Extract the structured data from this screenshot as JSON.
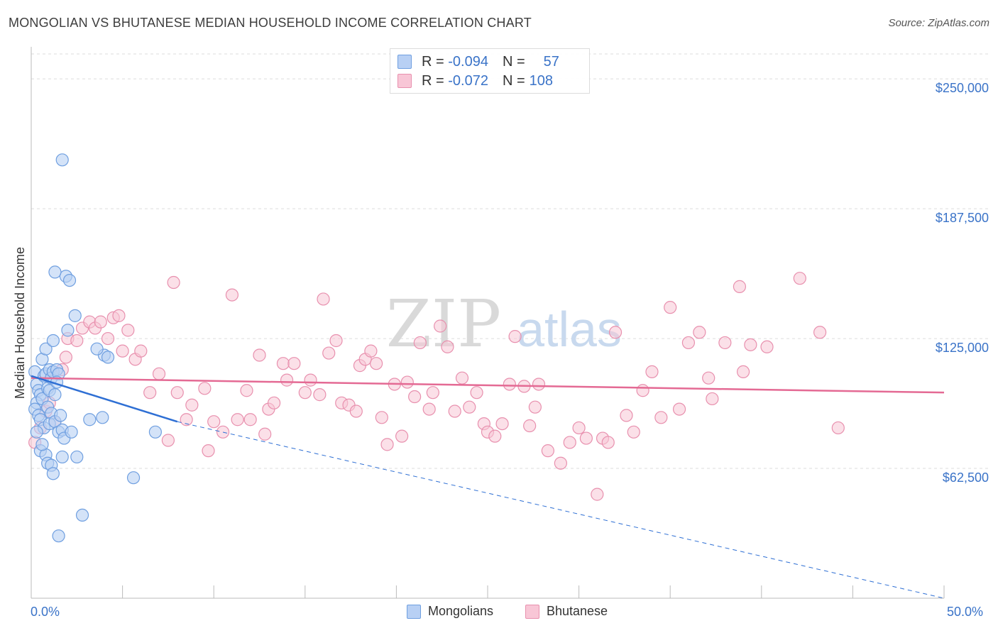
{
  "header": {
    "title": "MONGOLIAN VS BHUTANESE MEDIAN HOUSEHOLD INCOME CORRELATION CHART",
    "source": "Source: ZipAtlas.com"
  },
  "watermark": {
    "zip": "ZIP",
    "atlas": "atlas"
  },
  "colors": {
    "mongolian_fill": "#b8d0f4",
    "mongolian_stroke": "#6f9fe0",
    "mongolian_line": "#2e6fd4",
    "bhutanese_fill": "#f8c6d6",
    "bhutanese_stroke": "#e890ae",
    "bhutanese_line": "#e46a94",
    "axis_label": "#3a73c8",
    "grid": "#dddddd"
  },
  "correlation_box": {
    "rows": [
      {
        "r_label": "R =",
        "r_value": "-0.094",
        "n_label": "N =",
        "n_value": "57"
      },
      {
        "r_label": "R =",
        "r_value": "-0.072",
        "n_label": "N =",
        "n_value": "108"
      }
    ]
  },
  "legend": {
    "mongolians": "Mongolians",
    "bhutanese": "Bhutanese"
  },
  "chart_data": {
    "type": "scatter",
    "title": "MONGOLIAN VS BHUTANESE MEDIAN HOUSEHOLD INCOME CORRELATION CHART",
    "xlabel": "",
    "ylabel": "Median Household Income",
    "xlim": [
      0,
      50
    ],
    "ylim": [
      0,
      262000
    ],
    "x_tick_labels": {
      "left": "0.0%",
      "right": "50.0%"
    },
    "y_ticks": [
      62500,
      125000,
      187500,
      250000
    ],
    "y_tick_labels": [
      "$62,500",
      "$125,000",
      "$187,500",
      "$250,000"
    ],
    "grid": true,
    "series": [
      {
        "name": "Mongolians",
        "points": [
          [
            0.2,
            109000
          ],
          [
            0.3,
            103000
          ],
          [
            0.4,
            100000
          ],
          [
            0.5,
            98000
          ],
          [
            0.3,
            94000
          ],
          [
            0.6,
            96000
          ],
          [
            0.2,
            91000
          ],
          [
            0.4,
            88000
          ],
          [
            0.5,
            86000
          ],
          [
            0.7,
            107000
          ],
          [
            0.8,
            108000
          ],
          [
            0.9,
            101000
          ],
          [
            1.0,
            110000
          ],
          [
            1.1,
            106000
          ],
          [
            0.6,
            115000
          ],
          [
            0.8,
            120000
          ],
          [
            1.0,
            100000
          ],
          [
            1.2,
            109000
          ],
          [
            1.3,
            98000
          ],
          [
            1.4,
            110000
          ],
          [
            1.5,
            108000
          ],
          [
            1.2,
            124000
          ],
          [
            0.9,
            92000
          ],
          [
            1.1,
            89000
          ],
          [
            0.7,
            82000
          ],
          [
            1.0,
            84000
          ],
          [
            1.3,
            85000
          ],
          [
            1.5,
            80000
          ],
          [
            1.7,
            81000
          ],
          [
            1.6,
            88000
          ],
          [
            0.5,
            71000
          ],
          [
            0.8,
            69000
          ],
          [
            0.9,
            65000
          ],
          [
            1.1,
            64000
          ],
          [
            1.2,
            60000
          ],
          [
            1.7,
            68000
          ],
          [
            2.5,
            68000
          ],
          [
            1.8,
            77000
          ],
          [
            2.2,
            80000
          ],
          [
            3.2,
            86000
          ],
          [
            3.9,
            87000
          ],
          [
            4.0,
            117000
          ],
          [
            4.2,
            116000
          ],
          [
            3.6,
            120000
          ],
          [
            2.4,
            136000
          ],
          [
            1.9,
            155000
          ],
          [
            2.1,
            153000
          ],
          [
            2.0,
            129000
          ],
          [
            1.3,
            157000
          ],
          [
            1.7,
            211000
          ],
          [
            1.5,
            30000
          ],
          [
            2.8,
            40000
          ],
          [
            5.6,
            58000
          ],
          [
            6.8,
            80000
          ],
          [
            0.3,
            80000
          ],
          [
            0.6,
            74000
          ],
          [
            1.4,
            104000
          ]
        ]
      },
      {
        "name": "Bhutanese",
        "points": [
          [
            0.2,
            75000
          ],
          [
            0.5,
            82000
          ],
          [
            0.8,
            90000
          ],
          [
            1.0,
            94000
          ],
          [
            1.3,
            85000
          ],
          [
            1.7,
            110000
          ],
          [
            1.9,
            116000
          ],
          [
            2.0,
            125000
          ],
          [
            2.5,
            124000
          ],
          [
            2.8,
            130000
          ],
          [
            3.2,
            133000
          ],
          [
            3.5,
            130000
          ],
          [
            3.8,
            133000
          ],
          [
            4.2,
            125000
          ],
          [
            4.5,
            135000
          ],
          [
            4.8,
            136000
          ],
          [
            5.0,
            119000
          ],
          [
            5.3,
            129000
          ],
          [
            5.7,
            115000
          ],
          [
            6.0,
            119000
          ],
          [
            6.5,
            99000
          ],
          [
            7.0,
            108000
          ],
          [
            7.5,
            76000
          ],
          [
            7.8,
            152000
          ],
          [
            8.0,
            99000
          ],
          [
            8.5,
            86000
          ],
          [
            8.8,
            93000
          ],
          [
            9.5,
            101000
          ],
          [
            9.7,
            71000
          ],
          [
            10.0,
            85000
          ],
          [
            10.5,
            80000
          ],
          [
            11.0,
            146000
          ],
          [
            11.3,
            86000
          ],
          [
            11.8,
            100000
          ],
          [
            12.0,
            86000
          ],
          [
            12.5,
            117000
          ],
          [
            12.8,
            79000
          ],
          [
            13.0,
            91000
          ],
          [
            13.3,
            94000
          ],
          [
            13.8,
            113000
          ],
          [
            14.0,
            105000
          ],
          [
            14.4,
            113000
          ],
          [
            15.0,
            99000
          ],
          [
            15.3,
            105000
          ],
          [
            15.8,
            98000
          ],
          [
            16.0,
            144000
          ],
          [
            16.3,
            118000
          ],
          [
            16.7,
            124000
          ],
          [
            17.0,
            94000
          ],
          [
            17.4,
            93000
          ],
          [
            17.8,
            90000
          ],
          [
            18.0,
            112000
          ],
          [
            18.3,
            115000
          ],
          [
            18.6,
            119000
          ],
          [
            18.9,
            113000
          ],
          [
            19.2,
            87000
          ],
          [
            19.5,
            74000
          ],
          [
            19.9,
            103000
          ],
          [
            20.3,
            78000
          ],
          [
            20.6,
            104000
          ],
          [
            21.0,
            97000
          ],
          [
            21.3,
            123000
          ],
          [
            21.8,
            91000
          ],
          [
            22.0,
            99000
          ],
          [
            22.4,
            131000
          ],
          [
            22.8,
            121000
          ],
          [
            23.2,
            90000
          ],
          [
            23.6,
            106000
          ],
          [
            24.0,
            92000
          ],
          [
            24.4,
            99000
          ],
          [
            24.8,
            84000
          ],
          [
            25.0,
            80000
          ],
          [
            25.4,
            78000
          ],
          [
            25.8,
            84000
          ],
          [
            26.2,
            103000
          ],
          [
            26.5,
            126000
          ],
          [
            27.0,
            102000
          ],
          [
            27.3,
            83000
          ],
          [
            27.6,
            92000
          ],
          [
            27.8,
            103000
          ],
          [
            28.3,
            71000
          ],
          [
            29.0,
            65000
          ],
          [
            29.5,
            75000
          ],
          [
            30.0,
            82000
          ],
          [
            30.4,
            77000
          ],
          [
            31.0,
            50000
          ],
          [
            31.3,
            77000
          ],
          [
            31.6,
            75000
          ],
          [
            32.0,
            128000
          ],
          [
            32.6,
            88000
          ],
          [
            33.0,
            80000
          ],
          [
            33.5,
            100000
          ],
          [
            34.0,
            109000
          ],
          [
            34.5,
            87000
          ],
          [
            35.0,
            140000
          ],
          [
            35.5,
            91000
          ],
          [
            36.0,
            123000
          ],
          [
            36.6,
            128000
          ],
          [
            37.1,
            106000
          ],
          [
            37.3,
            96000
          ],
          [
            38.0,
            123000
          ],
          [
            38.8,
            150000
          ],
          [
            39.0,
            109000
          ],
          [
            39.4,
            122000
          ],
          [
            40.3,
            121000
          ],
          [
            42.1,
            154000
          ],
          [
            43.2,
            128000
          ],
          [
            44.2,
            82000
          ]
        ]
      }
    ],
    "trend_lines": [
      {
        "series": "Mongolians",
        "solid": [
          [
            0,
            107000
          ],
          [
            8,
            85000
          ]
        ],
        "dashed_to": [
          50,
          0
        ]
      },
      {
        "series": "Bhutanese",
        "solid": [
          [
            0,
            106000
          ],
          [
            50,
            99000
          ]
        ]
      }
    ]
  }
}
